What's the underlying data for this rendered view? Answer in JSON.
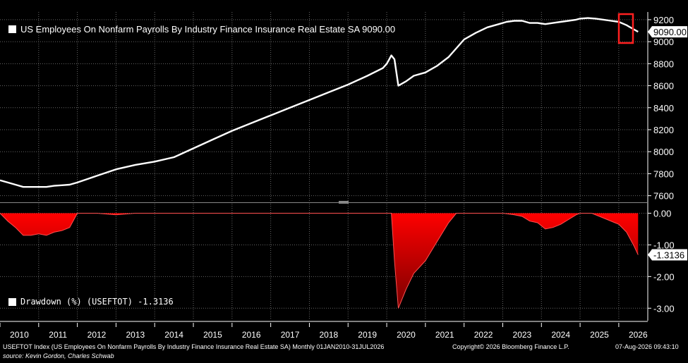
{
  "colors": {
    "background": "#000000",
    "line": "#ffffff",
    "drawdown_fill": "#ff0000",
    "highlight_box": "#ff2020",
    "grid": "#666666"
  },
  "top_legend": {
    "label": "US Employees On Nonfarm Payrolls By Industry Finance Insurance Real Estate SA 9090.00",
    "icon": "white-square-swatch"
  },
  "bottom_legend": {
    "label": "Drawdown (%) (USEFTOT) -1.3136",
    "icon": "white-square-swatch"
  },
  "footer": {
    "description": "USEFTOT Index (US Employees On Nonfarm Payrolls By Industry Finance Insurance Real Estate SA) Monthly 01JAN2010-31JUL2026",
    "source": "source: Kevin Gordon, Charles Schwab",
    "copyright": "Copyright© 2026 Bloomberg Finance L.P.",
    "timestamp": "07-Aug-2026 09:43:10"
  },
  "chart_data": [
    {
      "type": "line",
      "title": "US Employees On Nonfarm Payrolls By Industry Finance Insurance Real Estate SA",
      "last_value_label": "9090.00",
      "x_tick_labels": [
        "2010",
        "2011",
        "2012",
        "2013",
        "2014",
        "2015",
        "2016",
        "2017",
        "2018",
        "2019",
        "2020",
        "2021",
        "2022",
        "2023",
        "2024",
        "2025",
        "2026"
      ],
      "y_tick_labels": [
        "7600",
        "7800",
        "8000",
        "8200",
        "8400",
        "8600",
        "8800",
        "9000",
        "9200"
      ],
      "ylim": [
        7540,
        9270
      ],
      "xlim": [
        2010.0,
        2026.75
      ],
      "grid": true,
      "y_axis_side": "right",
      "highlight": "latest value boxed in red",
      "series": [
        {
          "name": "US Employees On Nonfarm Payrolls By Industry Finance Insurance Real Estate SA",
          "x": [
            2010.0,
            2010.2,
            2010.4,
            2010.6,
            2010.8,
            2011.0,
            2011.2,
            2011.4,
            2011.6,
            2011.8,
            2012.0,
            2012.5,
            2013.0,
            2013.5,
            2014.0,
            2014.5,
            2015.0,
            2015.5,
            2016.0,
            2016.5,
            2017.0,
            2017.5,
            2018.0,
            2018.5,
            2019.0,
            2019.5,
            2019.9,
            2020.0,
            2020.05,
            2020.12,
            2020.2,
            2020.3,
            2020.5,
            2020.7,
            2021.0,
            2021.3,
            2021.6,
            2021.8,
            2022.0,
            2022.3,
            2022.6,
            2022.9,
            2023.1,
            2023.3,
            2023.5,
            2023.7,
            2023.9,
            2024.1,
            2024.3,
            2024.5,
            2024.7,
            2024.9,
            2025.0,
            2025.2,
            2025.4,
            2025.6,
            2025.8,
            2026.0,
            2026.2,
            2026.4,
            2026.5
          ],
          "values": [
            7740,
            7720,
            7700,
            7680,
            7680,
            7680,
            7680,
            7690,
            7695,
            7700,
            7720,
            7780,
            7840,
            7880,
            7910,
            7950,
            8030,
            8110,
            8190,
            8260,
            8330,
            8400,
            8470,
            8540,
            8610,
            8690,
            8760,
            8800,
            8830,
            8875,
            8840,
            8600,
            8640,
            8690,
            8720,
            8780,
            8860,
            8940,
            9020,
            9080,
            9130,
            9160,
            9180,
            9190,
            9190,
            9170,
            9170,
            9160,
            9170,
            9180,
            9190,
            9200,
            9210,
            9215,
            9210,
            9200,
            9190,
            9180,
            9150,
            9110,
            9090
          ]
        }
      ]
    },
    {
      "type": "area",
      "title": "Drawdown (%) (USEFTOT)",
      "last_value_label": "-1.3136",
      "x_tick_labels": [
        "2010",
        "2011",
        "2012",
        "2013",
        "2014",
        "2015",
        "2016",
        "2017",
        "2018",
        "2019",
        "2020",
        "2021",
        "2022",
        "2023",
        "2024",
        "2025",
        "2026"
      ],
      "y_tick_labels": [
        "0.00",
        "-1.00",
        "-2.00",
        "-3.00"
      ],
      "ylim": [
        -3.35,
        0.3
      ],
      "xlim": [
        2010.0,
        2026.75
      ],
      "grid": true,
      "y_axis_side": "right",
      "series": [
        {
          "name": "Drawdown (%) (USEFTOT)",
          "x": [
            2010.0,
            2010.2,
            2010.4,
            2010.6,
            2010.8,
            2011.0,
            2011.2,
            2011.4,
            2011.6,
            2011.8,
            2012.0,
            2012.5,
            2013.0,
            2013.5,
            2014.0,
            2019.9,
            2020.0,
            2020.12,
            2020.2,
            2020.3,
            2020.5,
            2020.7,
            2021.0,
            2021.3,
            2021.6,
            2021.8,
            2022.0,
            2023.0,
            2023.3,
            2023.5,
            2023.7,
            2023.9,
            2024.1,
            2024.3,
            2024.5,
            2024.7,
            2024.9,
            2025.0,
            2025.3,
            2025.5,
            2025.7,
            2025.9,
            2026.0,
            2026.2,
            2026.4,
            2026.5
          ],
          "values": [
            0,
            -0.25,
            -0.45,
            -0.7,
            -0.7,
            -0.65,
            -0.7,
            -0.6,
            -0.55,
            -0.45,
            0,
            0,
            -0.05,
            0,
            0,
            0,
            0,
            0,
            -1.5,
            -3.0,
            -2.4,
            -1.9,
            -1.5,
            -0.9,
            -0.3,
            0,
            0,
            0,
            -0.05,
            -0.1,
            -0.25,
            -0.3,
            -0.5,
            -0.45,
            -0.35,
            -0.2,
            -0.05,
            0,
            0,
            -0.1,
            -0.2,
            -0.3,
            -0.35,
            -0.6,
            -1.05,
            -1.3136
          ]
        }
      ]
    }
  ]
}
